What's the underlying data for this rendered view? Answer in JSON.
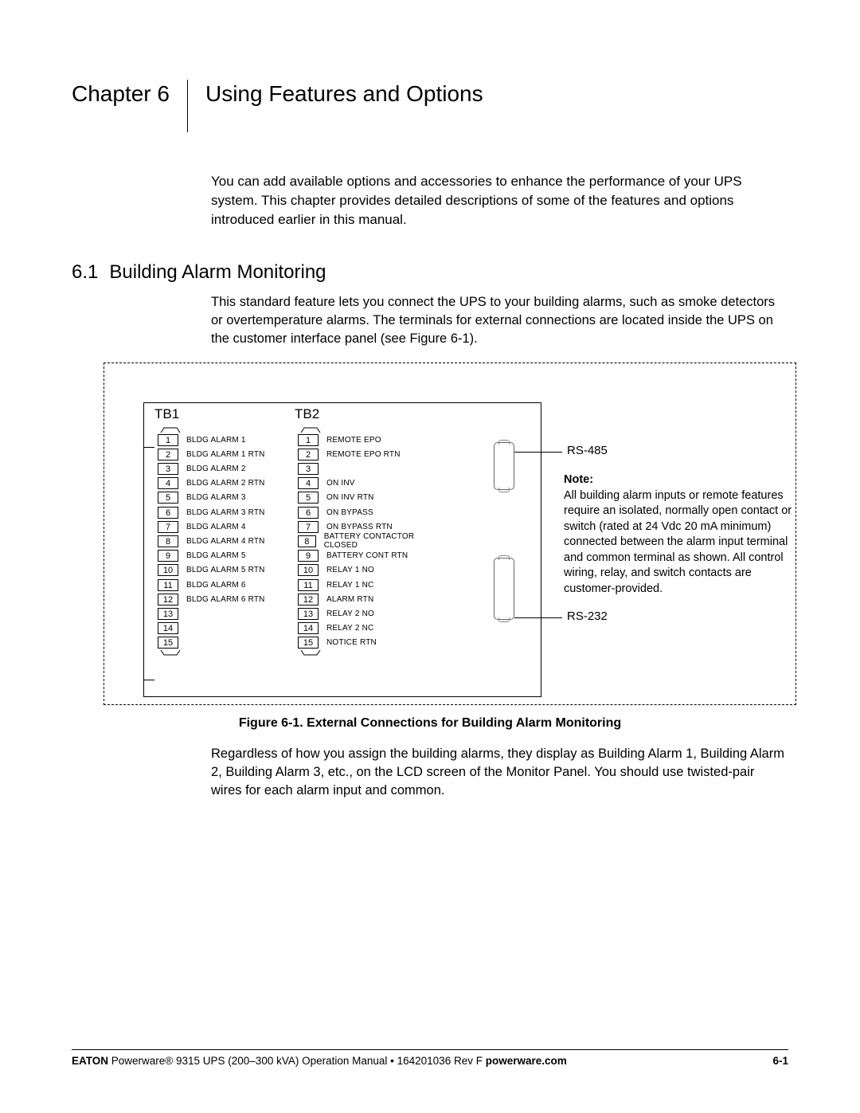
{
  "chapter": {
    "label": "Chapter 6",
    "title": "Using Features and Options"
  },
  "intro": "You can add available options and accessories to enhance the performance of your UPS system. This chapter provides detailed descriptions of some of the features and options introduced earlier in this manual.",
  "section": {
    "number": "6.1",
    "title": "Building Alarm Monitoring",
    "para": "This standard feature lets you connect the UPS to your building alarms, such as smoke detectors or overtemperature alarms. The terminals for external connections are located inside the UPS on the customer interface panel (see Figure 6-1)."
  },
  "diagram": {
    "tb1_label": "TB1",
    "tb2_label": "TB2",
    "tb1": [
      {
        "n": "1",
        "name": "BLDG ALARM 1"
      },
      {
        "n": "2",
        "name": "BLDG ALARM 1 RTN"
      },
      {
        "n": "3",
        "name": "BLDG ALARM 2"
      },
      {
        "n": "4",
        "name": "BLDG ALARM 2 RTN"
      },
      {
        "n": "5",
        "name": "BLDG ALARM 3"
      },
      {
        "n": "6",
        "name": "BLDG ALARM 3 RTN"
      },
      {
        "n": "7",
        "name": "BLDG ALARM 4"
      },
      {
        "n": "8",
        "name": "BLDG ALARM 4 RTN"
      },
      {
        "n": "9",
        "name": "BLDG ALARM 5"
      },
      {
        "n": "10",
        "name": "BLDG ALARM 5 RTN"
      },
      {
        "n": "11",
        "name": "BLDG ALARM 6"
      },
      {
        "n": "12",
        "name": "BLDG ALARM 6 RTN"
      },
      {
        "n": "13",
        "name": ""
      },
      {
        "n": "14",
        "name": ""
      },
      {
        "n": "15",
        "name": ""
      }
    ],
    "tb2": [
      {
        "n": "1",
        "name": "REMOTE EPO"
      },
      {
        "n": "2",
        "name": "REMOTE EPO RTN"
      },
      {
        "n": "3",
        "name": ""
      },
      {
        "n": "4",
        "name": "ON INV"
      },
      {
        "n": "5",
        "name": "ON INV RTN"
      },
      {
        "n": "6",
        "name": "ON BYPASS"
      },
      {
        "n": "7",
        "name": "ON BYPASS RTN"
      },
      {
        "n": "8",
        "name": "BATTERY CONTACTOR CLOSED"
      },
      {
        "n": "9",
        "name": "BATTERY CONT RTN"
      },
      {
        "n": "10",
        "name": "RELAY 1 NO"
      },
      {
        "n": "11",
        "name": "RELAY 1 NC"
      },
      {
        "n": "12",
        "name": "ALARM RTN"
      },
      {
        "n": "13",
        "name": "RELAY 2 NO"
      },
      {
        "n": "14",
        "name": "RELAY 2 NC"
      },
      {
        "n": "15",
        "name": "NOTICE RTN"
      }
    ],
    "rs485": "RS-485",
    "rs232": "RS-232",
    "note_label": "Note:",
    "note_text": "All building alarm inputs or remote features require an isolated, normally open contact or switch (rated at 24 Vdc 20 mA minimum) connected between the alarm input terminal and common terminal as shown. All control wiring, relay, and switch contacts are customer-provided."
  },
  "figure_caption": "Figure 6-1. External Connections for Building Alarm Monitoring",
  "post_figure": "Regardless of how you assign the building alarms, they display as Building Alarm 1, Building Alarm 2, Building Alarm 3, etc., on the LCD screen of the Monitor Panel. You should use twisted-pair wires for each alarm input and common.",
  "footer": {
    "brand": "EATON",
    "product": " Powerware® 9315 UPS (200–300 kVA) Operation Manual  •  164201036 Rev F  ",
    "site": "powerware.com",
    "page": "6-1"
  }
}
